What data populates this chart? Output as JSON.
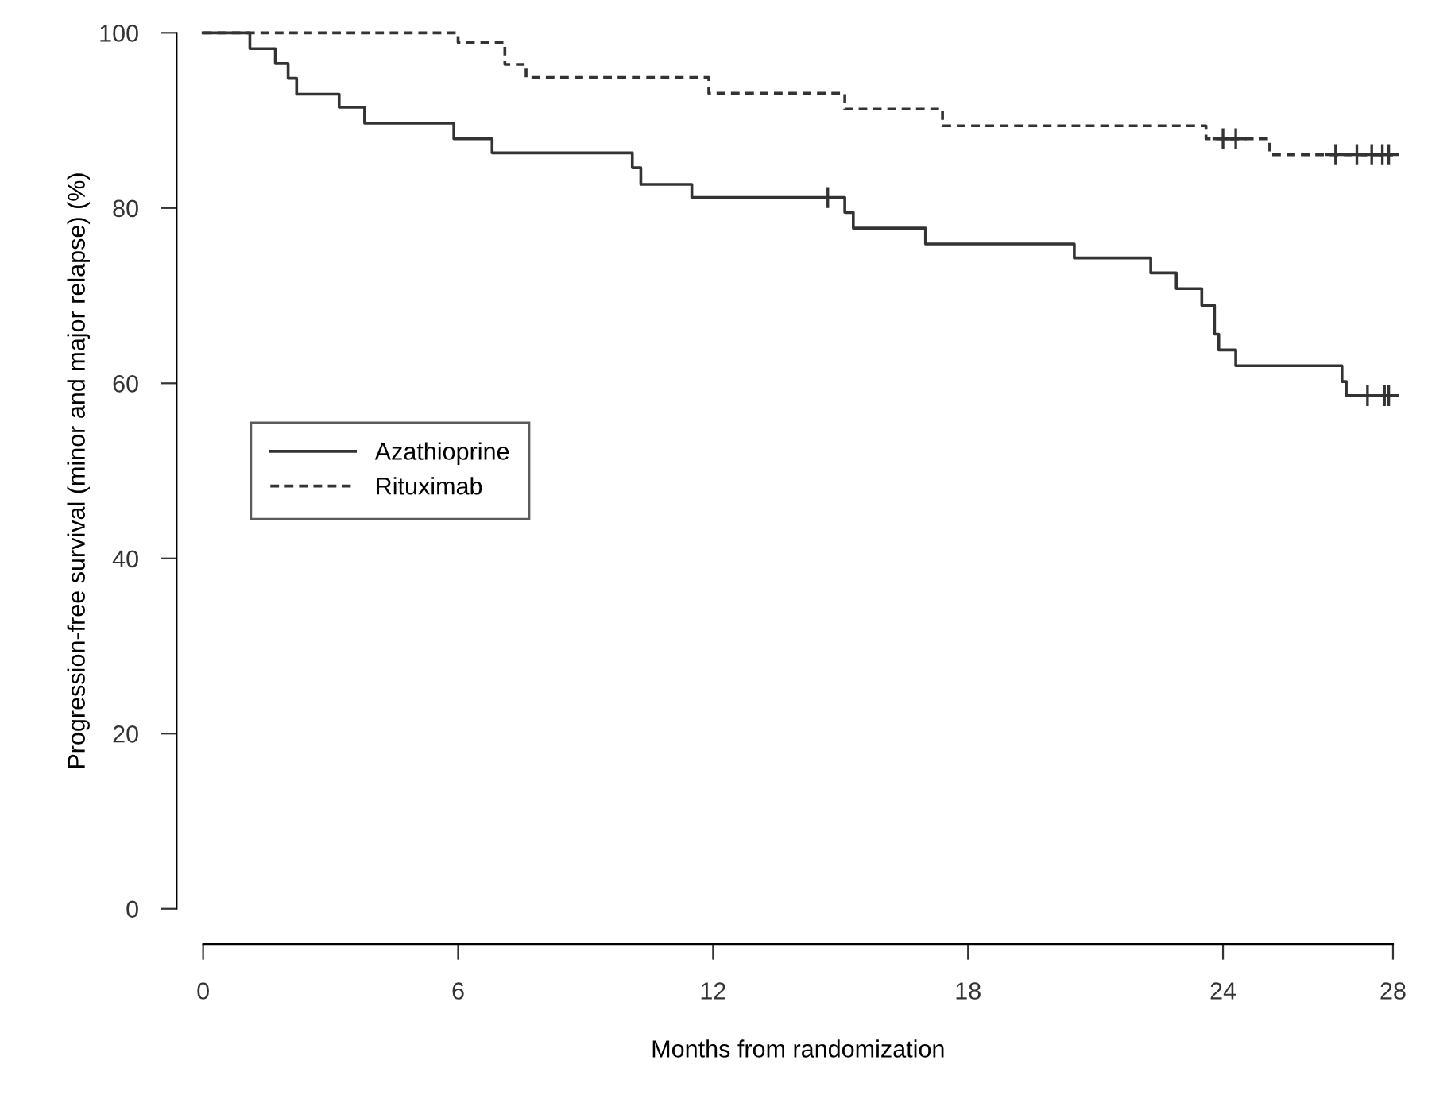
{
  "chart_data": {
    "type": "step",
    "xlabel": "Months from randomization",
    "ylabel": "Progression-free survival (minor and major relapse) (%)",
    "xlim": [
      0,
      28
    ],
    "ylim": [
      0,
      100
    ],
    "xticks": [
      0,
      6,
      12,
      18,
      24,
      28
    ],
    "yticks": [
      0,
      20,
      40,
      60,
      80,
      100
    ],
    "grid": false,
    "legend": "left",
    "series": [
      {
        "name": "Azathioprine",
        "color": "#333333",
        "line_style": "solid",
        "x": [
          0,
          1.1,
          1.7,
          2.0,
          2.2,
          3.2,
          3.8,
          5.9,
          6.8,
          10.1,
          10.3,
          11.5,
          15.1,
          15.3,
          17.0,
          20.5,
          22.3,
          22.9,
          23.5,
          23.8,
          23.9,
          24.3,
          26.8,
          26.9,
          28
        ],
        "values": [
          100,
          98.2,
          96.5,
          94.8,
          93.0,
          91.5,
          89.7,
          87.9,
          86.3,
          84.6,
          82.7,
          81.2,
          79.5,
          77.7,
          75.9,
          74.3,
          72.6,
          70.8,
          68.9,
          65.6,
          63.8,
          62.0,
          60.2,
          58.6,
          58.6
        ]
      },
      {
        "name": "Rituximab",
        "color": "#333333",
        "line_style": "dashed",
        "x": [
          0,
          6.0,
          7.1,
          7.6,
          11.9,
          15.1,
          17.4,
          23.6,
          25.1,
          28
        ],
        "values": [
          100,
          98.9,
          96.4,
          94.9,
          93.1,
          91.3,
          89.4,
          87.9,
          86.1,
          86.1
        ]
      },
      {
        "type": "scatter",
        "marker": "cross",
        "color": "#333333",
        "x": [
          14.7,
          27.4,
          27.8,
          27.9
        ],
        "values": [
          81.2,
          58.6,
          58.6,
          58.6
        ]
      },
      {
        "type": "scatter",
        "marker": "cross",
        "color": "#333333",
        "x": [
          24.0,
          24.3,
          26.65,
          27.15,
          27.5,
          27.75,
          27.9
        ],
        "values": [
          87.9,
          87.9,
          86.1,
          86.1,
          86.1,
          86.1,
          86.1
        ]
      }
    ]
  }
}
